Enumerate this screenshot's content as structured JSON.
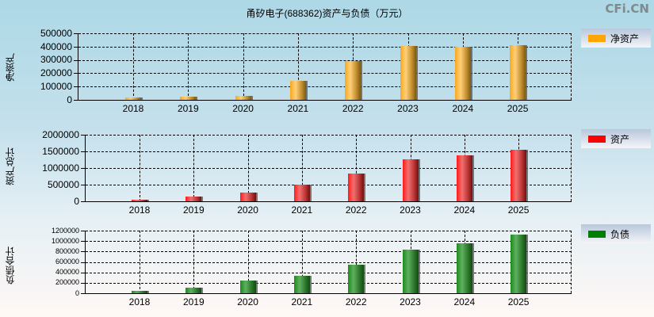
{
  "title": "甬矽电子(688362)资产与负债（万元）",
  "watermark": "CFi.CN",
  "colors": {
    "net_assets": "#FFA500",
    "assets": "#FF0000",
    "liabilities": "#008000"
  },
  "panels": [
    {
      "ylabel": "净资产",
      "legend": "净资产",
      "yticks": [
        "500000",
        "400000",
        "300000",
        "200000",
        "100000",
        "0"
      ],
      "xticks": [
        "2018",
        "2019",
        "2020",
        "2021",
        "2022",
        "2023",
        "2024",
        "2025"
      ]
    },
    {
      "ylabel": "资产总计",
      "legend": "资产",
      "yticks": [
        "2000000",
        "1500000",
        "1000000",
        "500000",
        "0"
      ],
      "xticks": [
        "2018",
        "2019",
        "2020",
        "2021",
        "2022",
        "2023",
        "2024",
        "2025"
      ]
    },
    {
      "ylabel": "负债合计",
      "legend": "负债",
      "yticks": [
        "1200000",
        "1000000",
        "800000",
        "600000",
        "400000",
        "200000",
        "0"
      ],
      "xticks": [
        "2018",
        "2019",
        "2020",
        "2021",
        "2022",
        "2023",
        "2024",
        "2025"
      ]
    }
  ],
  "chart_data": [
    {
      "type": "bar",
      "title": "甬矽电子(688362)资产与负债（万元）",
      "ylabel": "净资产",
      "categories": [
        "2018",
        "2019",
        "2020",
        "2021",
        "2022",
        "2023",
        "2024",
        "2025"
      ],
      "series": [
        {
          "name": "净资产",
          "color": "#FFA500",
          "values": [
            18000,
            24000,
            30000,
            140000,
            294000,
            402000,
            401000,
            408000
          ]
        }
      ],
      "ylim": [
        0,
        500000
      ],
      "grid": true,
      "legend_position": "right"
    },
    {
      "type": "bar",
      "ylabel": "资产总计",
      "categories": [
        "2018",
        "2019",
        "2020",
        "2021",
        "2022",
        "2023",
        "2024",
        "2025"
      ],
      "series": [
        {
          "name": "资产",
          "color": "#FF0000",
          "values": [
            56000,
            152000,
            271000,
            494000,
            845000,
            1252000,
            1372000,
            1539000
          ]
        }
      ],
      "ylim": [
        0,
        2000000
      ],
      "grid": true,
      "legend_position": "right"
    },
    {
      "type": "bar",
      "ylabel": "负债合计",
      "categories": [
        "2018",
        "2019",
        "2020",
        "2021",
        "2022",
        "2023",
        "2024",
        "2025"
      ],
      "series": [
        {
          "name": "负债",
          "color": "#008000",
          "values": [
            45000,
            105000,
            240000,
            335000,
            540000,
            840000,
            960000,
            1125000
          ]
        }
      ],
      "ylim": [
        0,
        1200000
      ],
      "grid": true,
      "legend_position": "right"
    }
  ]
}
